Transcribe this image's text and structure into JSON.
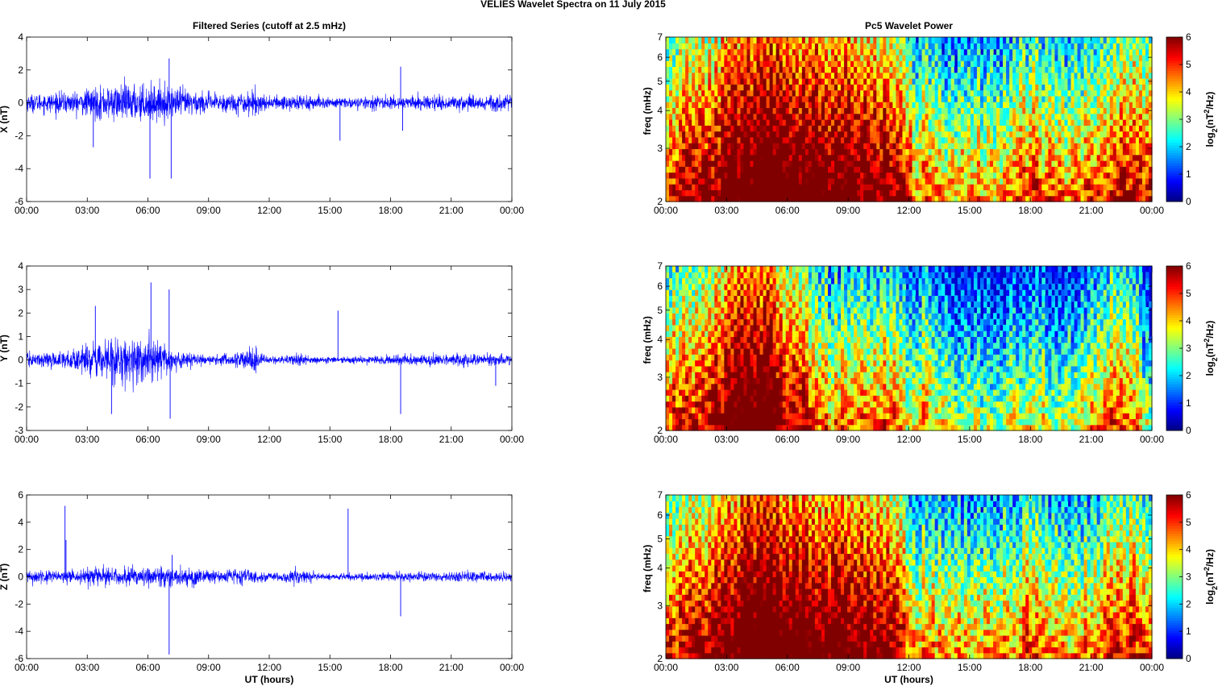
{
  "figure": {
    "title": "VELIES Wavelet Spectra on 11 July      2015"
  },
  "chart_data": [
    {
      "type": "line",
      "panel": "series-x",
      "title": "Filtered Series (cutoff at 2.5 mHz)",
      "xlabel": "",
      "ylabel": "X (nT)",
      "xlim": [
        0,
        24
      ],
      "ylim": [
        -6,
        4
      ],
      "x_ticks": [
        "00:00",
        "03:00",
        "06:00",
        "09:00",
        "12:00",
        "15:00",
        "18:00",
        "21:00",
        "00:00"
      ],
      "y_ticks": [
        "4",
        "2",
        "0",
        "-2",
        "-4",
        "-6"
      ],
      "line_color": "#0000ff",
      "activity": [
        [
          0,
          0.45
        ],
        [
          2.5,
          0.6
        ],
        [
          3.5,
          0.85
        ],
        [
          5,
          1.0
        ],
        [
          7.5,
          0.85
        ],
        [
          9,
          0.5
        ],
        [
          10.5,
          0.55
        ],
        [
          11.3,
          0.7
        ],
        [
          12,
          0.3
        ],
        [
          13.5,
          0.55
        ],
        [
          14.5,
          0.3
        ],
        [
          16,
          0.28
        ],
        [
          18,
          0.35
        ],
        [
          21,
          0.4
        ],
        [
          23,
          0.45
        ],
        [
          24,
          0.4
        ]
      ],
      "spikes": [
        [
          3.3,
          -2.7
        ],
        [
          6.1,
          -4.6
        ],
        [
          7.05,
          2.7
        ],
        [
          7.15,
          -4.6
        ],
        [
          15.5,
          -2.3
        ],
        [
          18.5,
          2.2
        ],
        [
          18.6,
          -1.7
        ]
      ]
    },
    {
      "type": "line",
      "panel": "series-y",
      "title": "",
      "xlabel": "",
      "ylabel": "Y (nT)",
      "xlim": [
        0,
        24
      ],
      "ylim": [
        -3,
        4
      ],
      "x_ticks": [
        "00:00",
        "03:00",
        "06:00",
        "09:00",
        "12:00",
        "15:00",
        "18:00",
        "21:00",
        "00:00"
      ],
      "y_ticks": [
        "4",
        "3",
        "2",
        "1",
        "0",
        "-1",
        "-2",
        "-3"
      ],
      "line_color": "#0000ff",
      "activity": [
        [
          0,
          0.25
        ],
        [
          2,
          0.3
        ],
        [
          3.5,
          0.7
        ],
        [
          4.5,
          1.0
        ],
        [
          6,
          0.75
        ],
        [
          7.5,
          0.35
        ],
        [
          9,
          0.15
        ],
        [
          10.5,
          0.3
        ],
        [
          11.2,
          0.45
        ],
        [
          12,
          0.12
        ],
        [
          13.5,
          0.25
        ],
        [
          14.5,
          0.1
        ],
        [
          17,
          0.16
        ],
        [
          19,
          0.2
        ],
        [
          22,
          0.25
        ],
        [
          24,
          0.2
        ]
      ],
      "spikes": [
        [
          3.4,
          2.3
        ],
        [
          4.2,
          -2.3
        ],
        [
          6.15,
          3.3
        ],
        [
          7.05,
          3.0
        ],
        [
          7.1,
          -2.5
        ],
        [
          15.4,
          2.1
        ],
        [
          18.5,
          -2.3
        ],
        [
          23.2,
          -1.1
        ]
      ]
    },
    {
      "type": "line",
      "panel": "series-z",
      "title": "",
      "xlabel": "UT (hours)",
      "ylabel": "Z (nT)",
      "xlim": [
        0,
        24
      ],
      "ylim": [
        -6,
        6
      ],
      "x_ticks": [
        "00:00",
        "03:00",
        "06:00",
        "09:00",
        "12:00",
        "15:00",
        "18:00",
        "21:00",
        "00:00"
      ],
      "y_ticks": [
        "6",
        "4",
        "2",
        "0",
        "-2",
        "-4",
        "-6"
      ],
      "line_color": "#0000ff",
      "activity": [
        [
          0,
          0.35
        ],
        [
          2.5,
          0.45
        ],
        [
          4,
          0.6
        ],
        [
          6,
          0.65
        ],
        [
          8,
          0.6
        ],
        [
          9.5,
          0.4
        ],
        [
          11,
          0.55
        ],
        [
          12,
          0.25
        ],
        [
          13.5,
          0.45
        ],
        [
          14.5,
          0.2
        ],
        [
          16,
          0.22
        ],
        [
          19,
          0.3
        ],
        [
          22,
          0.35
        ],
        [
          24,
          0.3
        ]
      ],
      "spikes": [
        [
          1.9,
          5.2
        ],
        [
          1.95,
          2.7
        ],
        [
          7.05,
          -5.7
        ],
        [
          15.9,
          5.0
        ],
        [
          18.5,
          -2.9
        ],
        [
          7.2,
          1.6
        ]
      ]
    },
    {
      "type": "heatmap",
      "panel": "power-x",
      "title": "Pc5 Wavelet Power",
      "xlabel": "",
      "ylabel": "freq (mHz)",
      "xlim": [
        0,
        24
      ],
      "ylim": [
        2,
        7
      ],
      "yscale": "log",
      "x_ticks": [
        "00:00",
        "03:00",
        "06:00",
        "09:00",
        "12:00",
        "15:00",
        "18:00",
        "21:00",
        "00:00"
      ],
      "y_ticks": [
        "7",
        "6",
        "5",
        "4",
        "3",
        "2"
      ],
      "colorbar": {
        "label_main": "log",
        "label_sub": "2",
        "label_rest": "(n",
        "label_sup": "2",
        "label_end": "/Hz)",
        "ticks": [
          "6",
          "5",
          "4",
          "3",
          "2",
          "1",
          "0"
        ],
        "range": [
          0,
          6
        ]
      },
      "level_profile": [
        [
          0,
          3.8
        ],
        [
          1,
          4.4
        ],
        [
          2,
          4.6
        ],
        [
          3,
          5.3
        ],
        [
          4,
          5.8
        ],
        [
          5,
          6.0
        ],
        [
          6,
          5.8
        ],
        [
          7,
          5.6
        ],
        [
          8,
          5.4
        ],
        [
          9,
          5.2
        ],
        [
          10,
          5.3
        ],
        [
          11,
          5.0
        ],
        [
          11.6,
          4.3
        ],
        [
          12.3,
          3.0
        ],
        [
          13.2,
          3.3
        ],
        [
          14,
          2.6
        ],
        [
          15,
          3.0
        ],
        [
          16,
          2.8
        ],
        [
          17,
          3.0
        ],
        [
          18,
          3.6
        ],
        [
          19,
          3.1
        ],
        [
          20,
          2.9
        ],
        [
          21,
          3.3
        ],
        [
          22,
          3.9
        ],
        [
          23,
          4.1
        ],
        [
          24,
          3.4
        ]
      ]
    },
    {
      "type": "heatmap",
      "panel": "power-y",
      "title": "",
      "xlabel": "",
      "ylabel": "freq (mHz)",
      "xlim": [
        0,
        24
      ],
      "ylim": [
        2,
        7
      ],
      "yscale": "log",
      "x_ticks": [
        "00:00",
        "03:00",
        "06:00",
        "09:00",
        "12:00",
        "15:00",
        "18:00",
        "21:00",
        "00:00"
      ],
      "y_ticks": [
        "7",
        "6",
        "5",
        "4",
        "3",
        "2"
      ],
      "colorbar": {
        "label_main": "log",
        "label_sub": "2",
        "label_rest": "(n",
        "label_sup": "2",
        "label_end": "/Hz)",
        "ticks": [
          "6",
          "5",
          "4",
          "3",
          "2",
          "1",
          "0"
        ],
        "range": [
          0,
          6
        ]
      },
      "level_profile": [
        [
          0,
          3.6
        ],
        [
          1,
          4.0
        ],
        [
          2,
          4.3
        ],
        [
          3,
          5.0
        ],
        [
          4,
          5.8
        ],
        [
          5,
          5.6
        ],
        [
          6,
          4.6
        ],
        [
          7,
          3.8
        ],
        [
          8,
          3.0
        ],
        [
          9,
          3.3
        ],
        [
          10,
          3.0
        ],
        [
          11,
          3.5
        ],
        [
          12,
          2.2
        ],
        [
          13,
          3.0
        ],
        [
          14,
          1.8
        ],
        [
          15,
          1.7
        ],
        [
          16,
          1.8
        ],
        [
          17,
          1.9
        ],
        [
          18,
          2.2
        ],
        [
          19,
          2.1
        ],
        [
          20,
          2.0
        ],
        [
          21,
          2.6
        ],
        [
          22,
          3.3
        ],
        [
          23,
          3.2
        ],
        [
          24,
          1.5
        ]
      ]
    },
    {
      "type": "heatmap",
      "panel": "power-z",
      "title": "",
      "xlabel": "UT (hours)",
      "ylabel": "freq (mHz)",
      "xlim": [
        0,
        24
      ],
      "ylim": [
        2,
        7
      ],
      "yscale": "log",
      "x_ticks": [
        "00:00",
        "03:00",
        "06:00",
        "09:00",
        "12:00",
        "15:00",
        "18:00",
        "21:00",
        "00:00"
      ],
      "y_ticks": [
        "7",
        "6",
        "5",
        "4",
        "3",
        "2"
      ],
      "colorbar": {
        "label_main": "log",
        "label_sub": "2",
        "label_rest": "(n",
        "label_sup": "2",
        "label_end": "/Hz)",
        "ticks": [
          "6",
          "5",
          "4",
          "3",
          "2",
          "1",
          "0"
        ],
        "range": [
          0,
          6
        ]
      },
      "level_profile": [
        [
          0,
          3.7
        ],
        [
          1,
          4.3
        ],
        [
          2,
          4.5
        ],
        [
          3,
          5.2
        ],
        [
          4,
          5.8
        ],
        [
          5,
          6.0
        ],
        [
          6,
          5.8
        ],
        [
          7,
          5.6
        ],
        [
          8,
          5.4
        ],
        [
          9,
          5.1
        ],
        [
          10,
          5.2
        ],
        [
          11,
          4.9
        ],
        [
          11.6,
          4.2
        ],
        [
          12.3,
          2.9
        ],
        [
          13.2,
          3.2
        ],
        [
          14,
          2.6
        ],
        [
          15,
          2.9
        ],
        [
          16,
          2.8
        ],
        [
          17,
          2.9
        ],
        [
          18,
          3.5
        ],
        [
          19,
          3.0
        ],
        [
          20,
          2.8
        ],
        [
          21,
          3.2
        ],
        [
          22,
          3.8
        ],
        [
          23,
          4.0
        ],
        [
          24,
          3.3
        ]
      ]
    }
  ]
}
